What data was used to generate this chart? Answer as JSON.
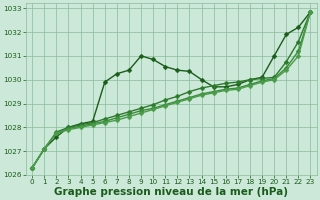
{
  "title": "Graphe pression niveau de la mer (hPa)",
  "background_color": "#cce8d8",
  "grid_color": "#88bb99",
  "xlim": [
    -0.5,
    23.5
  ],
  "ylim": [
    1026,
    1033.2
  ],
  "xticks": [
    0,
    1,
    2,
    3,
    4,
    5,
    6,
    7,
    8,
    9,
    10,
    11,
    12,
    13,
    14,
    15,
    16,
    17,
    18,
    19,
    20,
    21,
    22,
    23
  ],
  "yticks": [
    1026,
    1027,
    1028,
    1029,
    1030,
    1031,
    1032,
    1033
  ],
  "series": [
    {
      "x": [
        0,
        1,
        2,
        3,
        4,
        5,
        6,
        7,
        8,
        9,
        10,
        11,
        12,
        13,
        14,
        15,
        16,
        17,
        18,
        19,
        20,
        21,
        22,
        23
      ],
      "y": [
        1026.3,
        1027.1,
        1027.6,
        1028.0,
        1028.15,
        1028.25,
        1029.9,
        1030.25,
        1030.4,
        1031.0,
        1030.85,
        1030.55,
        1030.4,
        1030.35,
        1030.0,
        1029.7,
        1029.7,
        1029.8,
        1030.0,
        1030.1,
        1031.0,
        1031.9,
        1032.2,
        1032.85
      ],
      "marker": "D",
      "markersize": 2.5,
      "linewidth": 1.0,
      "color": "#1a5c1a"
    },
    {
      "x": [
        0,
        1,
        2,
        3,
        4,
        5,
        6,
        7,
        8,
        9,
        10,
        11,
        12,
        13,
        14,
        15,
        16,
        17,
        18,
        19,
        20,
        21,
        22,
        23
      ],
      "y": [
        1026.3,
        1027.1,
        1027.8,
        1028.0,
        1028.1,
        1028.2,
        1028.35,
        1028.5,
        1028.65,
        1028.8,
        1028.95,
        1029.15,
        1029.3,
        1029.5,
        1029.65,
        1029.75,
        1029.85,
        1029.9,
        1030.0,
        1030.05,
        1030.1,
        1030.75,
        1031.6,
        1032.85
      ],
      "marker": "D",
      "markersize": 2.5,
      "linewidth": 1.0,
      "color": "#2d7a2d"
    },
    {
      "x": [
        0,
        1,
        2,
        3,
        4,
        5,
        6,
        7,
        8,
        9,
        10,
        11,
        12,
        13,
        14,
        15,
        16,
        17,
        18,
        19,
        20,
        21,
        22,
        23
      ],
      "y": [
        1026.3,
        1027.1,
        1027.75,
        1027.95,
        1028.05,
        1028.15,
        1028.25,
        1028.4,
        1028.55,
        1028.7,
        1028.8,
        1028.95,
        1029.1,
        1029.25,
        1029.4,
        1029.5,
        1029.6,
        1029.65,
        1029.8,
        1029.95,
        1030.05,
        1030.5,
        1031.2,
        1032.85
      ],
      "marker": "D",
      "markersize": 2.5,
      "linewidth": 1.0,
      "color": "#3a8c3a"
    },
    {
      "x": [
        0,
        1,
        2,
        3,
        4,
        5,
        6,
        7,
        8,
        9,
        10,
        11,
        12,
        13,
        14,
        15,
        16,
        17,
        18,
        19,
        20,
        21,
        22,
        23
      ],
      "y": [
        1026.3,
        1027.1,
        1027.75,
        1027.9,
        1028.0,
        1028.1,
        1028.2,
        1028.3,
        1028.45,
        1028.6,
        1028.75,
        1028.9,
        1029.05,
        1029.2,
        1029.35,
        1029.45,
        1029.55,
        1029.6,
        1029.75,
        1029.9,
        1030.0,
        1030.4,
        1031.0,
        1032.85
      ],
      "marker": "D",
      "markersize": 2.5,
      "linewidth": 1.0,
      "color": "#4a9c4a"
    }
  ],
  "title_fontsize": 7.5,
  "tick_fontsize": 5.2,
  "title_color": "#1a5c1a",
  "tick_color": "#1a5c1a",
  "spine_color": "#88bb99"
}
